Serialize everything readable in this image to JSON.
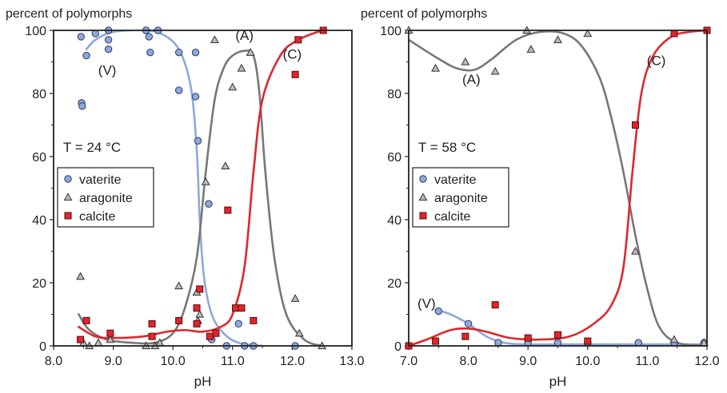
{
  "chart_data": [
    {
      "type": "scatter",
      "ylabel_top": "percent of polymorphs",
      "xlabel": "pH",
      "xlim": [
        8.0,
        13.0
      ],
      "ylim": [
        0,
        100
      ],
      "x_ticks": [
        "8.0",
        "9.0",
        "10.0",
        "11.0",
        "12.0",
        "13.0"
      ],
      "y_ticks": [
        "0",
        "20",
        "40",
        "60",
        "80",
        "100"
      ],
      "temperature_label": "T = 24 °C",
      "legend_position": "center-left",
      "legend": [
        "vaterite",
        "aragonite",
        "calcite"
      ],
      "series": [
        {
          "name": "vaterite",
          "marker": "circle",
          "color": "#8fa8da",
          "points": [
            [
              8.46,
              98
            ],
            [
              8.47,
              77
            ],
            [
              8.48,
              76
            ],
            [
              8.55,
              92
            ],
            [
              8.7,
              99
            ],
            [
              8.92,
              100
            ],
            [
              8.92,
              97
            ],
            [
              8.92,
              94
            ],
            [
              9.55,
              100
            ],
            [
              9.6,
              98
            ],
            [
              9.62,
              93
            ],
            [
              9.75,
              100
            ],
            [
              10.1,
              93
            ],
            [
              10.1,
              81
            ],
            [
              10.38,
              93
            ],
            [
              10.38,
              79
            ],
            [
              10.42,
              65
            ],
            [
              10.6,
              45
            ],
            [
              10.65,
              2
            ],
            [
              10.9,
              0
            ],
            [
              11.1,
              7
            ],
            [
              11.2,
              0
            ],
            [
              11.35,
              0
            ],
            [
              12.05,
              0
            ]
          ]
        },
        {
          "name": "aragonite",
          "marker": "triangle",
          "color": "#bbbbbb",
          "points": [
            [
              8.45,
              22
            ],
            [
              8.5,
              1
            ],
            [
              8.6,
              0
            ],
            [
              8.75,
              1
            ],
            [
              8.95,
              2
            ],
            [
              9.55,
              0
            ],
            [
              9.7,
              0
            ],
            [
              9.78,
              1
            ],
            [
              10.1,
              19
            ],
            [
              10.4,
              17
            ],
            [
              10.42,
              8
            ],
            [
              10.45,
              10
            ],
            [
              10.55,
              52
            ],
            [
              10.7,
              97
            ],
            [
              10.88,
              57
            ],
            [
              11.0,
              82
            ],
            [
              11.15,
              88
            ],
            [
              11.3,
              93
            ],
            [
              12.05,
              15
            ],
            [
              12.12,
              4
            ],
            [
              12.5,
              0
            ]
          ]
        },
        {
          "name": "calcite",
          "marker": "square",
          "color": "#e0262b",
          "points": [
            [
              8.45,
              2
            ],
            [
              8.55,
              8
            ],
            [
              8.95,
              4
            ],
            [
              9.65,
              3
            ],
            [
              9.65,
              7
            ],
            [
              10.1,
              8
            ],
            [
              10.45,
              18
            ],
            [
              10.4,
              12
            ],
            [
              10.4,
              7
            ],
            [
              10.62,
              3
            ],
            [
              10.72,
              4
            ],
            [
              10.92,
              43
            ],
            [
              11.05,
              12
            ],
            [
              11.15,
              12
            ],
            [
              11.35,
              8
            ],
            [
              12.05,
              86
            ],
            [
              12.1,
              97
            ],
            [
              12.52,
              100
            ]
          ]
        }
      ],
      "curves": [
        {
          "name": "vaterite",
          "label": "(V)",
          "color": "#8fa8da",
          "points": [
            [
              8.55,
              94
            ],
            [
              8.7,
              97
            ],
            [
              9.0,
              99.5
            ],
            [
              9.5,
              100
            ],
            [
              9.8,
              99
            ],
            [
              10.1,
              94
            ],
            [
              10.3,
              82
            ],
            [
              10.4,
              62
            ],
            [
              10.45,
              40
            ],
            [
              10.52,
              22
            ],
            [
              10.65,
              10
            ],
            [
              10.85,
              4
            ],
            [
              11.1,
              1
            ],
            [
              11.5,
              0
            ]
          ]
        },
        {
          "name": "aragonite",
          "label": "(A)",
          "color": "#777777",
          "points": [
            [
              8.42,
              10
            ],
            [
              8.6,
              5
            ],
            [
              8.9,
              2
            ],
            [
              9.3,
              1
            ],
            [
              9.7,
              1
            ],
            [
              10.0,
              4
            ],
            [
              10.2,
              12
            ],
            [
              10.4,
              28
            ],
            [
              10.55,
              55
            ],
            [
              10.7,
              78
            ],
            [
              10.85,
              88
            ],
            [
              11.0,
              92
            ],
            [
              11.2,
              93.5
            ],
            [
              11.35,
              92
            ],
            [
              11.45,
              80
            ],
            [
              11.55,
              55
            ],
            [
              11.7,
              28
            ],
            [
              11.9,
              10
            ],
            [
              12.2,
              2
            ],
            [
              12.5,
              0
            ]
          ]
        },
        {
          "name": "calcite",
          "label": "(C)",
          "color": "#e0262b",
          "points": [
            [
              8.42,
              6
            ],
            [
              8.7,
              3
            ],
            [
              9.0,
              2.5
            ],
            [
              9.5,
              3
            ],
            [
              9.9,
              4.5
            ],
            [
              10.2,
              5
            ],
            [
              10.5,
              4.5
            ],
            [
              10.8,
              6
            ],
            [
              11.0,
              10
            ],
            [
              11.2,
              25
            ],
            [
              11.35,
              55
            ],
            [
              11.5,
              78
            ],
            [
              11.8,
              92
            ],
            [
              12.1,
              97
            ],
            [
              12.5,
              100
            ]
          ]
        }
      ],
      "curve_labels": [
        {
          "text": "(V)",
          "x": 8.9,
          "y": 86
        },
        {
          "text": "(A)",
          "x": 11.2,
          "y": 97
        },
        {
          "text": "(C)",
          "x": 12.0,
          "y": 91
        }
      ]
    },
    {
      "type": "scatter",
      "ylabel_top": "percent of polymorphs",
      "xlabel": "pH",
      "xlim": [
        7.0,
        12.0
      ],
      "ylim": [
        0,
        100
      ],
      "x_ticks": [
        "7.0",
        "8.0",
        "9.0",
        "10.0",
        "11.0",
        "12.0"
      ],
      "y_ticks": [
        "0",
        "20",
        "40",
        "60",
        "80",
        "100"
      ],
      "temperature_label": "T = 58 °C",
      "legend_position": "center-left",
      "legend": [
        "vaterite",
        "aragonite",
        "calcite"
      ],
      "series": [
        {
          "name": "vaterite",
          "marker": "circle",
          "color": "#8fa8da",
          "points": [
            [
              7.5,
              11
            ],
            [
              8.0,
              7
            ],
            [
              8.5,
              1
            ],
            [
              9.0,
              1
            ],
            [
              9.5,
              1
            ],
            [
              10.0,
              1
            ],
            [
              10.85,
              1
            ],
            [
              11.45,
              1
            ],
            [
              11.95,
              1
            ]
          ]
        },
        {
          "name": "aragonite",
          "marker": "triangle",
          "color": "#bbbbbb",
          "points": [
            [
              7.0,
              100
            ],
            [
              7.45,
              88
            ],
            [
              7.95,
              90
            ],
            [
              8.45,
              87
            ],
            [
              8.98,
              100
            ],
            [
              9.05,
              94
            ],
            [
              9.5,
              97
            ],
            [
              10.0,
              99
            ],
            [
              10.8,
              30
            ],
            [
              11.45,
              2
            ],
            [
              11.95,
              1
            ]
          ]
        },
        {
          "name": "calcite",
          "marker": "square",
          "color": "#e0262b",
          "points": [
            [
              7.0,
              0
            ],
            [
              7.45,
              1.5
            ],
            [
              7.95,
              3
            ],
            [
              8.45,
              13
            ],
            [
              9.0,
              2.5
            ],
            [
              9.5,
              3.5
            ],
            [
              10.0,
              1.5
            ],
            [
              10.8,
              70
            ],
            [
              11.45,
              99
            ],
            [
              12.0,
              100
            ]
          ]
        }
      ],
      "curves": [
        {
          "name": "vaterite",
          "label": "(V)",
          "color": "#8fa8da",
          "points": [
            [
              7.45,
              11.5
            ],
            [
              7.7,
              10
            ],
            [
              8.0,
              7
            ],
            [
              8.3,
              3
            ],
            [
              8.6,
              1
            ],
            [
              9.0,
              0.5
            ],
            [
              10.0,
              0.5
            ],
            [
              11.0,
              0.5
            ],
            [
              12.0,
              0.5
            ]
          ]
        },
        {
          "name": "aragonite",
          "label": "(A)",
          "color": "#777777",
          "points": [
            [
              7.0,
              97
            ],
            [
              7.5,
              91
            ],
            [
              7.8,
              88
            ],
            [
              8.1,
              87.5
            ],
            [
              8.4,
              91
            ],
            [
              8.8,
              97
            ],
            [
              9.2,
              99.5
            ],
            [
              9.6,
              99
            ],
            [
              9.9,
              95
            ],
            [
              10.2,
              85
            ],
            [
              10.4,
              72
            ],
            [
              10.6,
              55
            ],
            [
              10.8,
              35
            ],
            [
              11.0,
              18
            ],
            [
              11.2,
              6
            ],
            [
              11.5,
              1
            ],
            [
              12.0,
              0
            ]
          ]
        },
        {
          "name": "calcite",
          "label": "(C)",
          "color": "#e0262b",
          "points": [
            [
              7.0,
              0
            ],
            [
              7.3,
              2
            ],
            [
              7.7,
              5
            ],
            [
              8.0,
              5.5
            ],
            [
              8.3,
              4.5
            ],
            [
              8.7,
              2.5
            ],
            [
              9.2,
              2
            ],
            [
              9.7,
              3
            ],
            [
              10.1,
              7
            ],
            [
              10.4,
              13
            ],
            [
              10.6,
              25
            ],
            [
              10.75,
              55
            ],
            [
              10.9,
              80
            ],
            [
              11.1,
              92
            ],
            [
              11.4,
              98
            ],
            [
              11.7,
              99.5
            ],
            [
              12.0,
              100
            ]
          ]
        }
      ],
      "curve_labels": [
        {
          "text": "(V)",
          "x": 7.3,
          "y": 12
        },
        {
          "text": "(A)",
          "x": 8.05,
          "y": 83
        },
        {
          "text": "(C)",
          "x": 11.15,
          "y": 89
        }
      ]
    }
  ]
}
